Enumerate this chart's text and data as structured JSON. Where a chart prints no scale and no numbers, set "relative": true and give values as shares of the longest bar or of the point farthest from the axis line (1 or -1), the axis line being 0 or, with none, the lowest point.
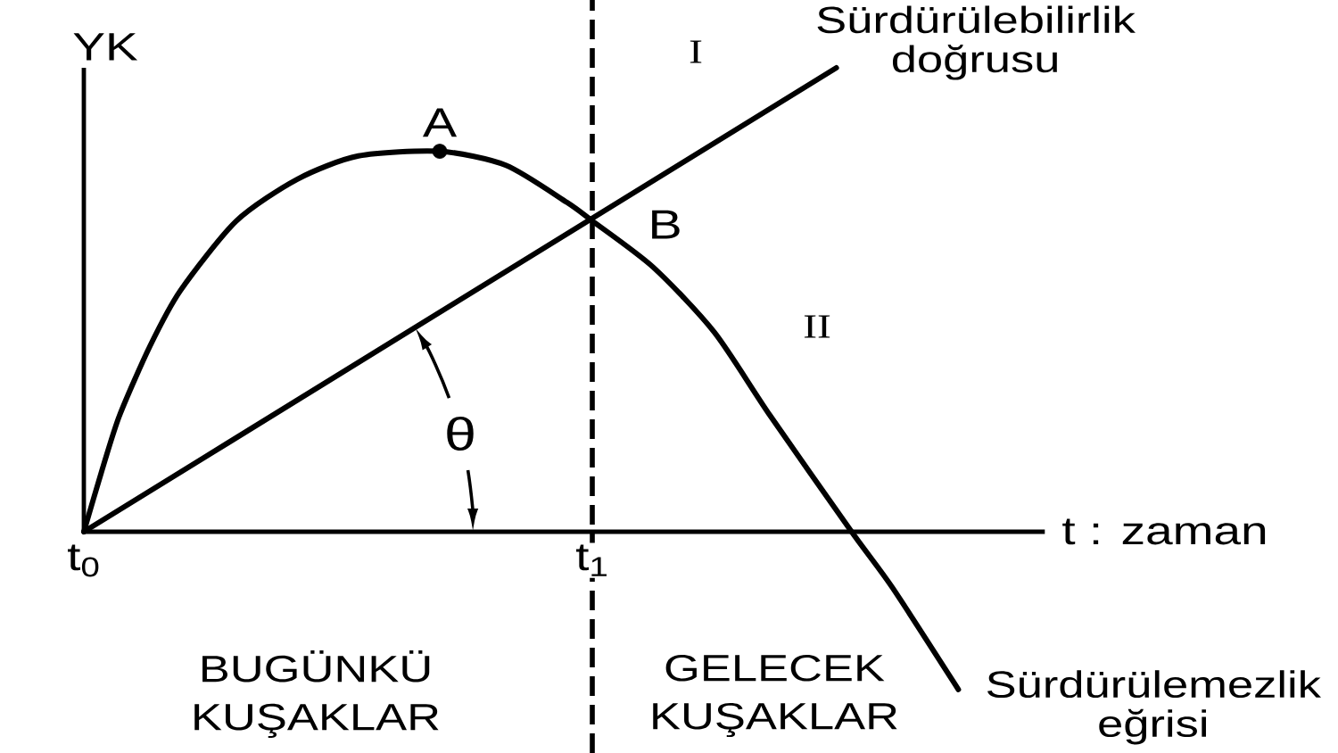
{
  "chart_data": {
    "type": "line",
    "relative": true,
    "xlabel": "t : zaman",
    "ylabel": "YK",
    "xlim": [
      0,
      1.89
    ],
    "xticks": [
      {
        "value": 0,
        "label": "t$_{0}$"
      },
      {
        "value": 1,
        "label": "t$_{1}$"
      }
    ],
    "series": [
      {
        "name": "Sürdürülebilirlik doğrusu",
        "color": "#000000",
        "x": [
          0,
          1.48
        ],
        "values": [
          0,
          1
        ]
      },
      {
        "name": "Sürdürülemezlik eğrisi",
        "color": "#000000",
        "x": [
          0,
          0.035,
          0.07,
          0.13,
          0.19,
          0.3,
          0.42,
          0.54,
          0.7,
          0.83,
          0.95,
          1.0,
          1.12,
          1.24,
          1.35,
          1.51,
          1.59,
          1.72
        ],
        "values": [
          0,
          0.13,
          0.25,
          0.4,
          0.52,
          0.67,
          0.76,
          0.81,
          0.82,
          0.79,
          0.71,
          0.67,
          0.57,
          0.43,
          0.25,
          0,
          -0.12,
          -0.34
        ]
      },
      {
        "type": "scatter",
        "marker": "circle",
        "color": "#000000",
        "x": [
          0.7
        ],
        "values": [
          0.82
        ]
      }
    ],
    "ref_lines": [
      {
        "axis": "x",
        "value": 1,
        "line_style": "dashed",
        "color": "#000000"
      }
    ],
    "annotations": [
      {
        "text": "A",
        "x": 0.7,
        "y": 0.82
      },
      {
        "text": "B",
        "x": 1,
        "y": 0.67
      },
      "θ",
      "I",
      "II",
      "BUGÜNKÜ KUŞAKLAR",
      "GELECEK KUŞAKLAR"
    ]
  }
}
